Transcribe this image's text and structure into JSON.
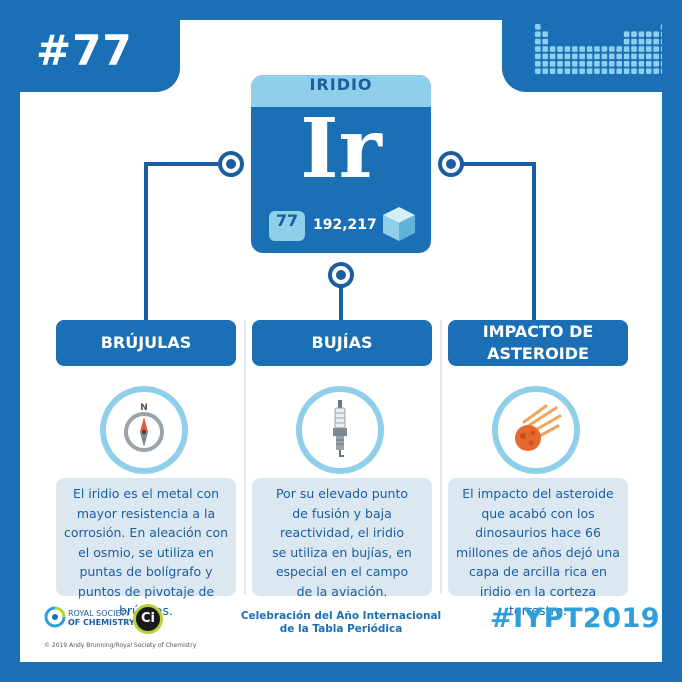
{
  "header": {
    "number": "#77"
  },
  "element": {
    "name": "IRIDIO",
    "symbol": "Ir",
    "atomic_number": "77",
    "atomic_mass": "192,217",
    "icon": "cube-icon"
  },
  "columns": [
    {
      "title": "BRÚJULAS",
      "icon": "compass-icon",
      "text": "El iridio es el metal con mayor resistencia a la corrosión. En aleación con el osmio, se utiliza en puntas de bolígrafo y puntos de pivotaje de brújulas."
    },
    {
      "title": "BUJÍAS",
      "icon": "spark-plug-icon",
      "text": "Por su elevado punto de fusión y baja reactividad, el iridio se utiliza en bujías, en especial en el campo de la aviación."
    },
    {
      "title": "IMPACTO DE ASTEROIDE",
      "icon": "meteor-icon",
      "text": "El impacto del asteroide que acabó con los dinosaurios hace 66 millones de años dejó una capa de arcilla rica en iridio en la corteza terrestre."
    }
  ],
  "footer": {
    "rsc_line1": "ROYAL SOCIETY",
    "rsc_line2": "OF CHEMISTRY",
    "ci_logo": "Ci",
    "copyright": "© 2019 Andy Brunning/Royal Society of Chemistry",
    "celebration": "Celebración del Año Internacional de la Tabla Periódica",
    "hashtag": "#IYPT2019"
  },
  "colors": {
    "primary_blue": "#1b6fb5",
    "light_blue": "#8fcfe9",
    "text_box": "#dbe8f2",
    "hashtag": "#2f9fdc"
  }
}
